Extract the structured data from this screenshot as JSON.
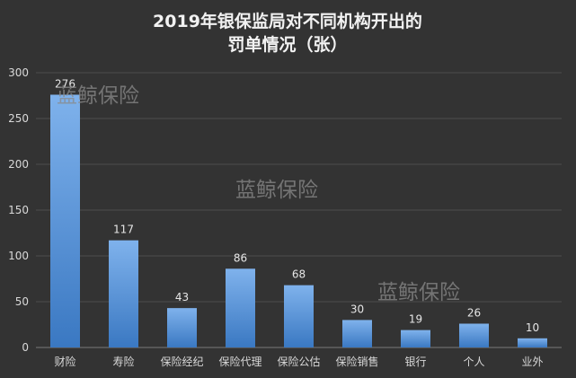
{
  "chart_data": {
    "type": "bar",
    "title_line1": "2019年银保监局对不同机构开出的",
    "title_line2": "罚单情况（张）",
    "categories": [
      "财险",
      "寿险",
      "保险经纪",
      "保险代理",
      "保险公估",
      "保险销售",
      "银行",
      "个人",
      "业外"
    ],
    "values": [
      276,
      117,
      43,
      86,
      68,
      30,
      19,
      26,
      10
    ],
    "ylim": [
      0,
      300
    ],
    "yticks": [
      0,
      50,
      100,
      150,
      200,
      250,
      300
    ],
    "grid": true,
    "legend": "none",
    "xlabel": "",
    "ylabel": ""
  },
  "watermarks": [
    "蓝鲸保险",
    "蓝鲸保险",
    "蓝鲸保险"
  ],
  "colors": {
    "background": "#333333",
    "bar_top": "#7fb2ec",
    "bar_bottom": "#3a78c2",
    "text": "#d9d9d9",
    "grid": "#4d4d4d"
  }
}
